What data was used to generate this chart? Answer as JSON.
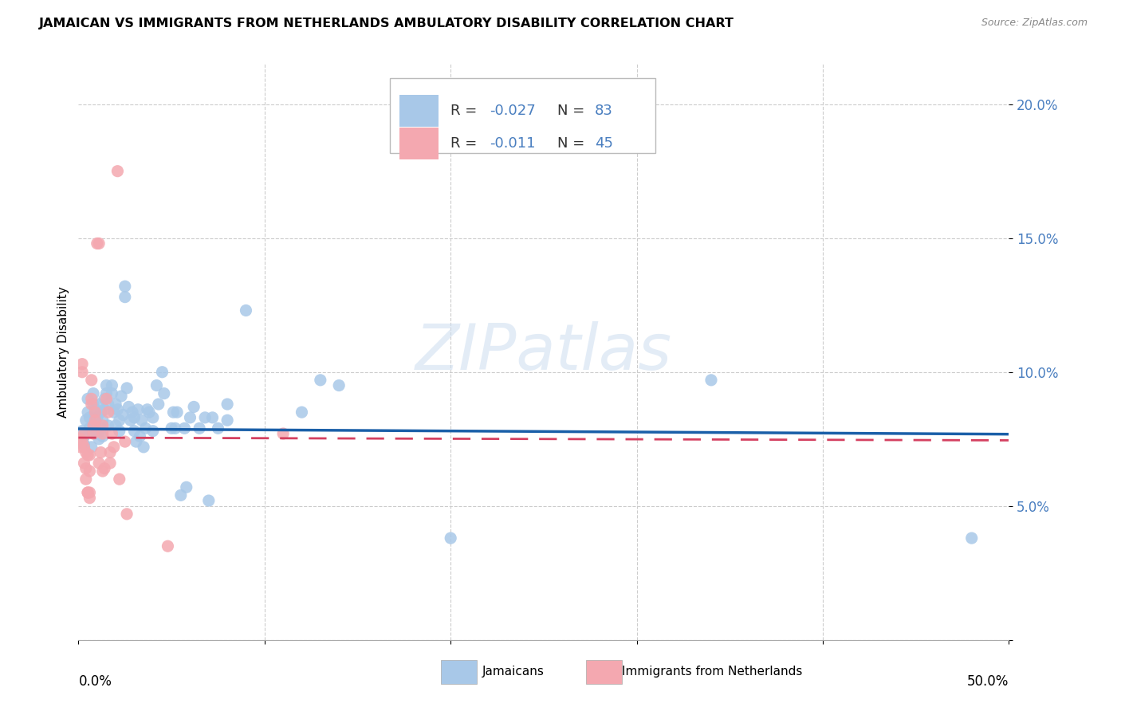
{
  "title": "JAMAICAN VS IMMIGRANTS FROM NETHERLANDS AMBULATORY DISABILITY CORRELATION CHART",
  "source": "Source: ZipAtlas.com",
  "ylabel": "Ambulatory Disability",
  "watermark": "ZIPatlas",
  "xmin": 0.0,
  "xmax": 0.5,
  "ymin": 0.0,
  "ymax": 0.215,
  "yticks": [
    0.0,
    0.05,
    0.1,
    0.15,
    0.2
  ],
  "ytick_labels": [
    "",
    "5.0%",
    "10.0%",
    "15.0%",
    "20.0%"
  ],
  "blue_color": "#a8c8e8",
  "pink_color": "#f4a8b0",
  "blue_line_color": "#1a5fa8",
  "pink_line_color": "#d44060",
  "legend_blue_text_color": "#4a7fc0",
  "legend_pink_text_color": "#4a7fc0",
  "blue_r": "-0.027",
  "blue_n": "83",
  "pink_r": "-0.011",
  "pink_n": "45",
  "blue_intercept": 0.0788,
  "blue_slope": -0.004,
  "pink_intercept": 0.0755,
  "pink_slope": -0.002,
  "blue_scatter": [
    [
      0.002,
      0.078
    ],
    [
      0.003,
      0.073
    ],
    [
      0.003,
      0.076
    ],
    [
      0.004,
      0.082
    ],
    [
      0.005,
      0.085
    ],
    [
      0.005,
      0.09
    ],
    [
      0.006,
      0.079
    ],
    [
      0.006,
      0.083
    ],
    [
      0.007,
      0.072
    ],
    [
      0.007,
      0.078
    ],
    [
      0.008,
      0.088
    ],
    [
      0.008,
      0.092
    ],
    [
      0.009,
      0.086
    ],
    [
      0.009,
      0.08
    ],
    [
      0.01,
      0.077
    ],
    [
      0.01,
      0.083
    ],
    [
      0.011,
      0.088
    ],
    [
      0.011,
      0.075
    ],
    [
      0.012,
      0.079
    ],
    [
      0.012,
      0.085
    ],
    [
      0.013,
      0.082
    ],
    [
      0.013,
      0.076
    ],
    [
      0.014,
      0.09
    ],
    [
      0.014,
      0.086
    ],
    [
      0.015,
      0.095
    ],
    [
      0.015,
      0.092
    ],
    [
      0.016,
      0.088
    ],
    [
      0.016,
      0.08
    ],
    [
      0.018,
      0.095
    ],
    [
      0.018,
      0.092
    ],
    [
      0.019,
      0.085
    ],
    [
      0.02,
      0.088
    ],
    [
      0.02,
      0.08
    ],
    [
      0.021,
      0.086
    ],
    [
      0.022,
      0.078
    ],
    [
      0.022,
      0.082
    ],
    [
      0.023,
      0.091
    ],
    [
      0.024,
      0.084
    ],
    [
      0.025,
      0.128
    ],
    [
      0.025,
      0.132
    ],
    [
      0.026,
      0.094
    ],
    [
      0.027,
      0.087
    ],
    [
      0.028,
      0.082
    ],
    [
      0.029,
      0.085
    ],
    [
      0.03,
      0.083
    ],
    [
      0.03,
      0.078
    ],
    [
      0.031,
      0.074
    ],
    [
      0.032,
      0.086
    ],
    [
      0.033,
      0.076
    ],
    [
      0.034,
      0.082
    ],
    [
      0.035,
      0.072
    ],
    [
      0.036,
      0.079
    ],
    [
      0.037,
      0.086
    ],
    [
      0.038,
      0.085
    ],
    [
      0.04,
      0.083
    ],
    [
      0.04,
      0.078
    ],
    [
      0.042,
      0.095
    ],
    [
      0.043,
      0.088
    ],
    [
      0.045,
      0.1
    ],
    [
      0.046,
      0.092
    ],
    [
      0.05,
      0.079
    ],
    [
      0.051,
      0.085
    ],
    [
      0.052,
      0.079
    ],
    [
      0.053,
      0.085
    ],
    [
      0.055,
      0.054
    ],
    [
      0.057,
      0.079
    ],
    [
      0.058,
      0.057
    ],
    [
      0.06,
      0.083
    ],
    [
      0.062,
      0.087
    ],
    [
      0.065,
      0.079
    ],
    [
      0.068,
      0.083
    ],
    [
      0.07,
      0.052
    ],
    [
      0.072,
      0.083
    ],
    [
      0.075,
      0.079
    ],
    [
      0.08,
      0.088
    ],
    [
      0.08,
      0.082
    ],
    [
      0.09,
      0.123
    ],
    [
      0.12,
      0.085
    ],
    [
      0.13,
      0.097
    ],
    [
      0.14,
      0.095
    ],
    [
      0.2,
      0.038
    ],
    [
      0.34,
      0.097
    ],
    [
      0.48,
      0.038
    ]
  ],
  "pink_scatter": [
    [
      0.001,
      0.072
    ],
    [
      0.001,
      0.075
    ],
    [
      0.002,
      0.074
    ],
    [
      0.002,
      0.1
    ],
    [
      0.002,
      0.103
    ],
    [
      0.003,
      0.077
    ],
    [
      0.003,
      0.072
    ],
    [
      0.003,
      0.066
    ],
    [
      0.004,
      0.07
    ],
    [
      0.004,
      0.064
    ],
    [
      0.004,
      0.06
    ],
    [
      0.005,
      0.069
    ],
    [
      0.005,
      0.055
    ],
    [
      0.005,
      0.055
    ],
    [
      0.006,
      0.069
    ],
    [
      0.006,
      0.063
    ],
    [
      0.006,
      0.055
    ],
    [
      0.006,
      0.053
    ],
    [
      0.007,
      0.097
    ],
    [
      0.007,
      0.09
    ],
    [
      0.007,
      0.088
    ],
    [
      0.008,
      0.08
    ],
    [
      0.008,
      0.077
    ],
    [
      0.009,
      0.085
    ],
    [
      0.009,
      0.082
    ],
    [
      0.01,
      0.148
    ],
    [
      0.011,
      0.148
    ],
    [
      0.011,
      0.066
    ],
    [
      0.012,
      0.07
    ],
    [
      0.013,
      0.08
    ],
    [
      0.013,
      0.077
    ],
    [
      0.013,
      0.063
    ],
    [
      0.014,
      0.064
    ],
    [
      0.015,
      0.09
    ],
    [
      0.016,
      0.085
    ],
    [
      0.017,
      0.07
    ],
    [
      0.017,
      0.066
    ],
    [
      0.018,
      0.077
    ],
    [
      0.019,
      0.072
    ],
    [
      0.021,
      0.175
    ],
    [
      0.022,
      0.06
    ],
    [
      0.025,
      0.074
    ],
    [
      0.026,
      0.047
    ],
    [
      0.048,
      0.035
    ],
    [
      0.11,
      0.077
    ]
  ]
}
